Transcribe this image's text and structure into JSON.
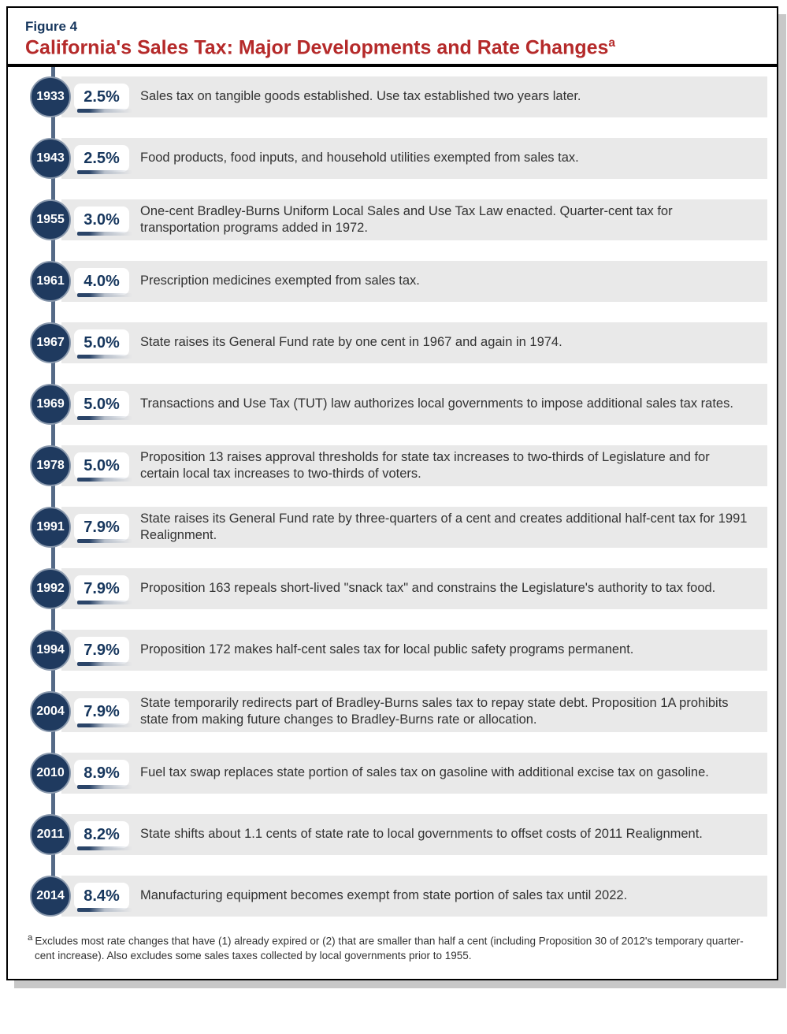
{
  "figure_label": "Figure 4",
  "figure_title": "California's Sales Tax: Major Developments and Rate Changes",
  "figure_title_sup": "a",
  "colors": {
    "title": "#b52a2a",
    "label": "#16365d",
    "node_fill": "#1f3a5f",
    "node_border": "#8a99ad",
    "timeline_line": "#556a87",
    "row_bg": "#e9e9e9",
    "rate_text": "#16365d",
    "desc_text": "#323232",
    "rule": "#000000",
    "shadow": "#c8c8c8"
  },
  "timeline": [
    {
      "year": "1933",
      "rate": "2.5%",
      "desc": "Sales tax on tangible goods established. Use tax established two years later."
    },
    {
      "year": "1943",
      "rate": "2.5%",
      "desc": "Food products, food inputs, and household utilities exempted from sales tax."
    },
    {
      "year": "1955",
      "rate": "3.0%",
      "desc": "One-cent Bradley-Burns Uniform Local Sales and Use Tax Law enacted. Quarter-cent tax for transportation programs added in 1972."
    },
    {
      "year": "1961",
      "rate": "4.0%",
      "desc": "Prescription medicines exempted from sales tax."
    },
    {
      "year": "1967",
      "rate": "5.0%",
      "desc": "State raises its General Fund rate by one cent in 1967 and again in 1974."
    },
    {
      "year": "1969",
      "rate": "5.0%",
      "desc": "Transactions and Use Tax (TUT) law authorizes local governments to impose additional sales tax rates."
    },
    {
      "year": "1978",
      "rate": "5.0%",
      "desc": "Proposition 13 raises approval thresholds for state tax increases to two-thirds of Legislature and for certain local tax increases to two-thirds of voters."
    },
    {
      "year": "1991",
      "rate": "7.9%",
      "desc": "State raises its General Fund rate by three-quarters of a cent and creates additional half-cent tax for 1991 Realignment."
    },
    {
      "year": "1992",
      "rate": "7.9%",
      "desc": "Proposition 163 repeals short-lived \"snack tax\" and constrains the Legislature's authority to tax food."
    },
    {
      "year": "1994",
      "rate": "7.9%",
      "desc": "Proposition 172 makes half-cent sales tax for local public safety programs permanent."
    },
    {
      "year": "2004",
      "rate": "7.9%",
      "desc": "State temporarily redirects part of Bradley-Burns sales tax to repay state debt. Proposition 1A prohibits state from making future changes to Bradley-Burns rate or allocation."
    },
    {
      "year": "2010",
      "rate": "8.9%",
      "desc": "Fuel tax swap replaces state portion of sales tax on gasoline with additional excise tax on gasoline."
    },
    {
      "year": "2011",
      "rate": "8.2%",
      "desc": "State shifts about 1.1 cents of state rate to local governments to offset costs of 2011 Realignment."
    },
    {
      "year": "2014",
      "rate": "8.4%",
      "desc": "Manufacturing equipment becomes exempt from state portion of sales tax until 2022."
    }
  ],
  "footnote_sup": "a",
  "footnote": "Excludes most rate changes that have (1) already expired or (2) that are smaller than half a cent (including Proposition 30 of 2012's temporary quarter-cent increase). Also excludes some sales taxes collected by local governments prior to 1955."
}
